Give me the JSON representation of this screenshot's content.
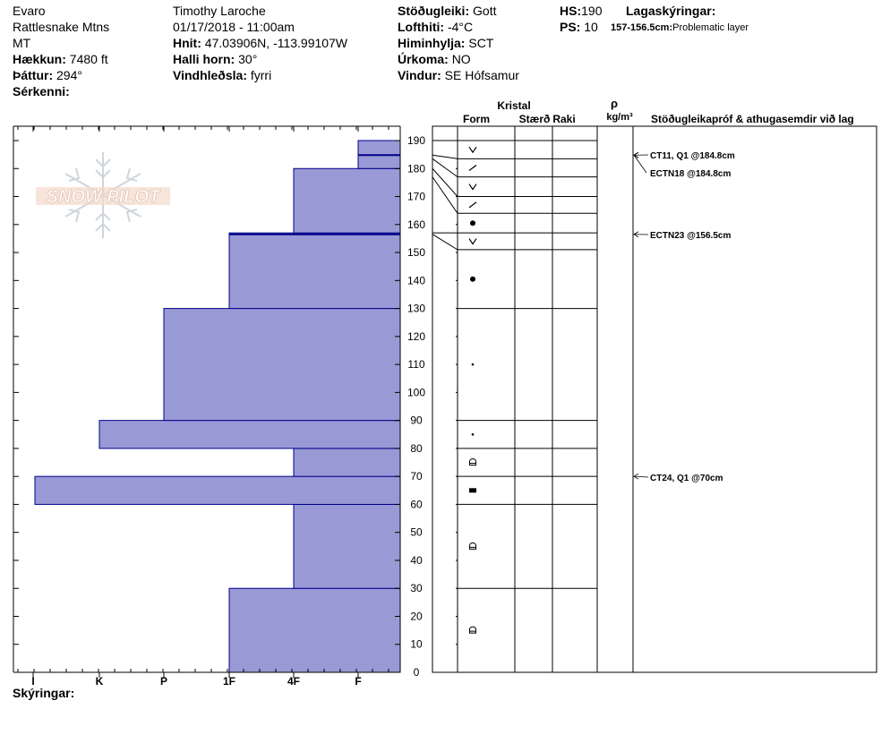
{
  "site": {
    "name": "Evaro",
    "range": "Rattlesnake Mtns",
    "state": "MT",
    "elevation_label": "Hækkun:",
    "elevation": "7480 ft",
    "aspect_label": "Þáttur:",
    "aspect": "294°",
    "features_label": "Sérkenni:"
  },
  "obs": {
    "observer": "Timothy  Laroche",
    "datetime": "01/17/2018 - 11:00am",
    "coords_label": "Hnit:",
    "coords": "47.03906N, -113.99107W",
    "slope_label": "Halli horn:",
    "slope": "30°",
    "wind_load_label": "Vindhleðsla:",
    "wind_load": "fyrri"
  },
  "conditions": {
    "stability_label": "Stöðugleiki:",
    "stability": "Gott",
    "air_temp_label": "Lofthiti:",
    "air_temp": "-4°C",
    "sky_label": "Himinhylja:",
    "sky": "SCT",
    "precip_label": "Úrkoma:",
    "precip": "NO",
    "wind_label": "Vindur:",
    "wind": "SE Hófsamur"
  },
  "depths": {
    "hs_label": "HS:",
    "hs": "190",
    "ps_label": "PS:",
    "ps": "10"
  },
  "layer_notes": {
    "title": "Lagaskýringar:",
    "range": "157-156.5cm:",
    "note": "Problematic layer"
  },
  "footer": {
    "notes_label": "Skýringar:"
  },
  "logo": {
    "text": "SNOW PILOT"
  },
  "table_headers": {
    "crystal": "Kristal",
    "form": "Form",
    "size": "Stærð",
    "moisture": "Raki",
    "rho": "ρ",
    "density_unit": "kg/m³",
    "tests": "Stöðugleikapróf & athugasemdir við lag"
  },
  "colors": {
    "hardness_fill": "#9999d6",
    "hardness_stroke": "#00008b"
  },
  "chart_data": {
    "type": "snow_profile",
    "y_axis": {
      "min": 0,
      "max": 190,
      "ticks": [
        0,
        10,
        20,
        30,
        40,
        50,
        60,
        70,
        80,
        90,
        100,
        110,
        120,
        130,
        140,
        150,
        160,
        170,
        180,
        190
      ]
    },
    "hardness_scale": [
      "I",
      "K",
      "P",
      "1F",
      "4F",
      "F"
    ],
    "hardness_layers": [
      {
        "bottom": 0,
        "top": 30,
        "hardness": "1F"
      },
      {
        "bottom": 30,
        "top": 60,
        "hardness": "4F"
      },
      {
        "bottom": 60,
        "top": 70,
        "hardness": "I-"
      },
      {
        "bottom": 70,
        "top": 80,
        "hardness": "4F"
      },
      {
        "bottom": 80,
        "top": 90,
        "hardness": "K"
      },
      {
        "bottom": 90,
        "top": 130,
        "hardness": "P"
      },
      {
        "bottom": 130,
        "top": 157,
        "hardness": "1F"
      },
      {
        "bottom": 157,
        "top": 180,
        "hardness": "4F"
      },
      {
        "bottom": 180,
        "top": 190,
        "hardness": "F"
      }
    ],
    "interface_lines": [
      156.5,
      184.8
    ],
    "grain_layers": [
      {
        "bottom": 0,
        "top": 30,
        "symbol": "facet-rounded"
      },
      {
        "bottom": 30,
        "top": 60,
        "symbol": "facet-rounded"
      },
      {
        "bottom": 60,
        "top": 70,
        "symbol": "crust"
      },
      {
        "bottom": 70,
        "top": 80,
        "symbol": "facet-rounded"
      },
      {
        "bottom": 80,
        "top": 90,
        "symbol": "small-dot"
      },
      {
        "bottom": 90,
        "top": 130,
        "symbol": "small-dot"
      },
      {
        "bottom": 130,
        "top": 151,
        "symbol": "rounded"
      },
      {
        "bottom": 151,
        "top": 157,
        "symbol": "surface-hoar"
      },
      {
        "bottom": 157,
        "top": 164,
        "symbol": "rounded"
      },
      {
        "bottom": 164,
        "top": 170,
        "symbol": "decomposing"
      },
      {
        "bottom": 170,
        "top": 177,
        "symbol": "surface-hoar"
      },
      {
        "bottom": 177,
        "top": 183.5,
        "symbol": "decomposing"
      },
      {
        "bottom": 183.5,
        "top": 190,
        "symbol": "surface-hoar"
      }
    ],
    "tests": [
      {
        "depth": 184.8,
        "label": "CT11, Q1 @184.8cm"
      },
      {
        "depth": 184.8,
        "label": "ECTN18 @184.8cm"
      },
      {
        "depth": 156.5,
        "label": "ECTN23 @156.5cm"
      },
      {
        "depth": 70,
        "label": "CT24, Q1 @70cm"
      }
    ]
  }
}
